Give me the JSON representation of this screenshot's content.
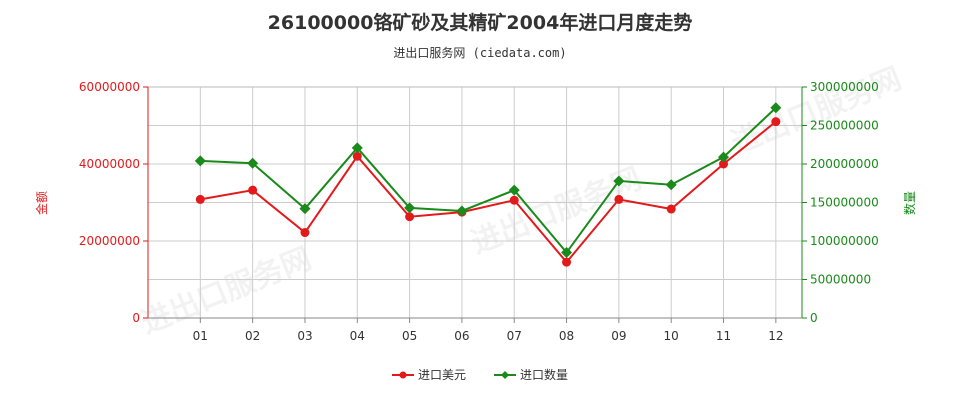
{
  "chart_data": {
    "type": "line",
    "title": "26100000铬矿砂及其精矿2004年进口月度走势",
    "subtitle": "进出口服务网 (ciedata.com)",
    "categories": [
      "01",
      "02",
      "03",
      "04",
      "05",
      "06",
      "07",
      "08",
      "09",
      "10",
      "11",
      "12"
    ],
    "series": [
      {
        "name": "进口美元",
        "axis": "left",
        "color": "#e31a1c",
        "values": [
          30800000,
          33200000,
          22200000,
          42000000,
          26300000,
          27500000,
          30600000,
          14500000,
          30800000,
          28300000,
          40000000,
          51000000
        ]
      },
      {
        "name": "进口数量",
        "axis": "right",
        "color": "#1a8a1a",
        "values": [
          204000000,
          201000000,
          142000000,
          221000000,
          143000000,
          139000000,
          166000000,
          85000000,
          178000000,
          173000000,
          209000000,
          273000000
        ]
      }
    ],
    "ylabel_left": "金额",
    "ylabel_right": "数量",
    "ylim_left": [
      0,
      60000000
    ],
    "ylim_right": [
      0,
      300000000
    ],
    "yticks_left": [
      "0",
      "20000000",
      "40000000",
      "60000000"
    ],
    "yticks_right": [
      "0",
      "50000000",
      "100000000",
      "150000000",
      "200000000",
      "250000000",
      "300000000"
    ],
    "grid": true,
    "legend_position": "bottom",
    "watermark": "进出口服务网"
  }
}
